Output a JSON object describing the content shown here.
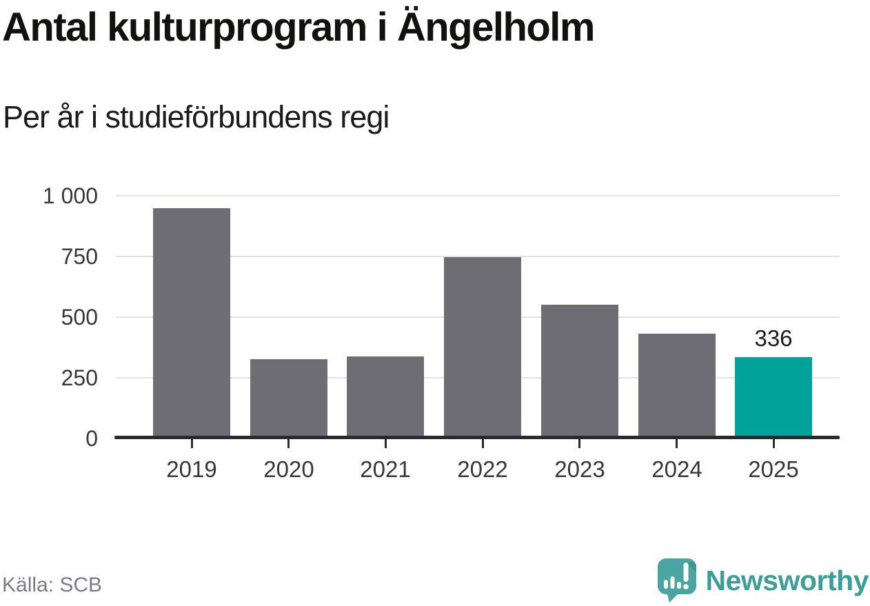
{
  "header": {
    "title": "Antal kulturprogram i Ängelholm",
    "subtitle": "Per år i studieförbundens regi"
  },
  "chart_data": {
    "type": "bar",
    "title": "Antal kulturprogram i Ängelholm",
    "subtitle": "Per år i studieförbundens regi",
    "source": "Källa: SCB",
    "categories": [
      "2019",
      "2020",
      "2021",
      "2022",
      "2023",
      "2024",
      "2025"
    ],
    "values": [
      948,
      326,
      338,
      748,
      552,
      432,
      336
    ],
    "highlight_index": 6,
    "annotations": [
      {
        "category": "2025",
        "text": "336"
      }
    ],
    "xlabel": "",
    "ylabel": "",
    "ylim": [
      0,
      1000
    ],
    "yticks": [
      0,
      250,
      500,
      750,
      1000
    ],
    "ytick_labels": [
      "0",
      "250",
      "500",
      "750",
      "1 000"
    ],
    "grid": true,
    "legend": false
  },
  "footer": {
    "source": "Källa: SCB",
    "brand": "Newsworthy"
  },
  "colors": {
    "bar": "#6e6d73",
    "highlight": "#00a299",
    "grid": "#e2e2e2",
    "axis": "#2b2b2e",
    "tick_label": "#36363b",
    "title": "#111110",
    "subtitle": "#1b1b1b",
    "source_text": "#7b7b82",
    "brand_teal": "#3b9e98",
    "logo_bubble": "#4aa5a0",
    "logo_glyph": "#ffffff"
  }
}
